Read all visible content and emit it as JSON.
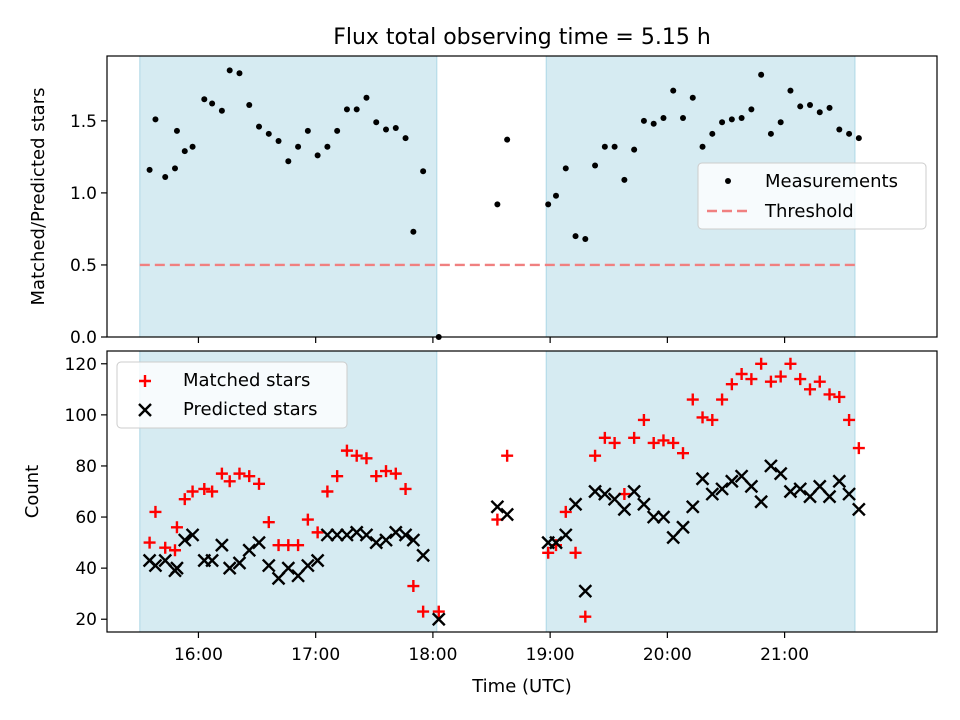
{
  "figure": {
    "title": "Flux total observing time = 5.15 h",
    "xlabel": "Time (UTC)"
  },
  "colors": {
    "shade": "#add8e6",
    "measurement": "#000000",
    "threshold": "#f08080",
    "matched": "#ff0000",
    "predicted": "#000000"
  },
  "chart_data": [
    {
      "type": "scatter",
      "panel": "top",
      "ylabel": "Matched/Predicted stars",
      "xlim_hours": [
        15.22,
        22.3
      ],
      "ylim": [
        0,
        1.95
      ],
      "yticks": [
        0.0,
        0.5,
        1.0,
        1.5
      ],
      "ytick_labels": [
        "0.0",
        "0.5",
        "1.0",
        "1.5"
      ],
      "xticks_hours": [
        16,
        17,
        18,
        19,
        20,
        21
      ],
      "legend": {
        "placement": "center-right",
        "entries": [
          "Measurements",
          "Threshold"
        ]
      },
      "shaded_intervals": [
        [
          "15:30",
          "18:02"
        ],
        [
          "18:58",
          "21:36"
        ]
      ],
      "threshold": {
        "name": "Threshold",
        "value": 0.5
      },
      "series": [
        {
          "name": "Measurements",
          "marker": "dot",
          "points": [
            [
              "15:35",
              1.16
            ],
            [
              "15:38",
              1.51
            ],
            [
              "15:43",
              1.11
            ],
            [
              "15:48",
              1.17
            ],
            [
              "15:49",
              1.43
            ],
            [
              "15:53",
              1.29
            ],
            [
              "15:57",
              1.32
            ],
            [
              "16:03",
              1.65
            ],
            [
              "16:07",
              1.62
            ],
            [
              "16:12",
              1.57
            ],
            [
              "16:16",
              1.85
            ],
            [
              "16:21",
              1.83
            ],
            [
              "16:26",
              1.61
            ],
            [
              "16:31",
              1.46
            ],
            [
              "16:36",
              1.41
            ],
            [
              "16:41",
              1.36
            ],
            [
              "16:46",
              1.22
            ],
            [
              "16:51",
              1.32
            ],
            [
              "16:56",
              1.43
            ],
            [
              "17:01",
              1.26
            ],
            [
              "17:06",
              1.32
            ],
            [
              "17:11",
              1.43
            ],
            [
              "17:16",
              1.58
            ],
            [
              "17:21",
              1.58
            ],
            [
              "17:26",
              1.66
            ],
            [
              "17:31",
              1.49
            ],
            [
              "17:36",
              1.44
            ],
            [
              "17:41",
              1.45
            ],
            [
              "17:46",
              1.38
            ],
            [
              "17:50",
              0.73
            ],
            [
              "17:55",
              1.15
            ],
            [
              "18:03",
              0.0
            ],
            [
              "18:33",
              0.92
            ],
            [
              "18:38",
              1.37
            ],
            [
              "18:59",
              0.92
            ],
            [
              "19:03",
              0.98
            ],
            [
              "19:08",
              1.17
            ],
            [
              "19:13",
              0.7
            ],
            [
              "19:18",
              0.68
            ],
            [
              "19:23",
              1.19
            ],
            [
              "19:28",
              1.32
            ],
            [
              "19:33",
              1.32
            ],
            [
              "19:38",
              1.09
            ],
            [
              "19:43",
              1.3
            ],
            [
              "19:48",
              1.5
            ],
            [
              "19:53",
              1.48
            ],
            [
              "19:58",
              1.52
            ],
            [
              "20:03",
              1.71
            ],
            [
              "20:08",
              1.52
            ],
            [
              "20:13",
              1.66
            ],
            [
              "20:18",
              1.32
            ],
            [
              "20:23",
              1.41
            ],
            [
              "20:28",
              1.49
            ],
            [
              "20:33",
              1.51
            ],
            [
              "20:38",
              1.52
            ],
            [
              "20:43",
              1.58
            ],
            [
              "20:48",
              1.82
            ],
            [
              "20:53",
              1.41
            ],
            [
              "20:58",
              1.49
            ],
            [
              "21:03",
              1.71
            ],
            [
              "21:08",
              1.6
            ],
            [
              "21:13",
              1.61
            ],
            [
              "21:18",
              1.56
            ],
            [
              "21:23",
              1.59
            ],
            [
              "21:28",
              1.44
            ],
            [
              "21:33",
              1.41
            ],
            [
              "21:38",
              1.38
            ]
          ]
        }
      ]
    },
    {
      "type": "scatter",
      "panel": "bottom",
      "ylabel": "Count",
      "xlabel": "Time (UTC)",
      "xlim_hours": [
        15.22,
        22.3
      ],
      "ylim": [
        15,
        125
      ],
      "yticks": [
        20,
        40,
        60,
        80,
        100,
        120
      ],
      "ytick_labels": [
        "20",
        "40",
        "60",
        "80",
        "100",
        "120"
      ],
      "xticks_hours": [
        16,
        17,
        18,
        19,
        20,
        21
      ],
      "xtick_labels": [
        "16:00",
        "17:00",
        "18:00",
        "19:00",
        "20:00",
        "21:00"
      ],
      "legend": {
        "placement": "upper-left",
        "entries": [
          "Matched stars",
          "Predicted stars"
        ]
      },
      "shaded_intervals": [
        [
          "15:30",
          "18:02"
        ],
        [
          "18:58",
          "21:36"
        ]
      ],
      "series": [
        {
          "name": "Matched stars",
          "marker": "plus",
          "points": [
            [
              "15:35",
              50
            ],
            [
              "15:38",
              62
            ],
            [
              "15:43",
              48
            ],
            [
              "15:48",
              47
            ],
            [
              "15:49",
              56
            ],
            [
              "15:53",
              67
            ],
            [
              "15:57",
              70
            ],
            [
              "16:03",
              71
            ],
            [
              "16:07",
              70
            ],
            [
              "16:12",
              77
            ],
            [
              "16:16",
              74
            ],
            [
              "16:21",
              77
            ],
            [
              "16:26",
              76
            ],
            [
              "16:31",
              73
            ],
            [
              "16:36",
              58
            ],
            [
              "16:41",
              49
            ],
            [
              "16:46",
              49
            ],
            [
              "16:51",
              49
            ],
            [
              "16:56",
              59
            ],
            [
              "17:01",
              54
            ],
            [
              "17:06",
              70
            ],
            [
              "17:11",
              76
            ],
            [
              "17:16",
              86
            ],
            [
              "17:21",
              84
            ],
            [
              "17:26",
              83
            ],
            [
              "17:31",
              76
            ],
            [
              "17:36",
              78
            ],
            [
              "17:41",
              77
            ],
            [
              "17:46",
              71
            ],
            [
              "17:50",
              33
            ],
            [
              "17:55",
              23
            ],
            [
              "18:03",
              23
            ],
            [
              "18:33",
              59
            ],
            [
              "18:38",
              84
            ],
            [
              "18:59",
              46
            ],
            [
              "19:03",
              49
            ],
            [
              "19:08",
              62
            ],
            [
              "19:13",
              46
            ],
            [
              "19:18",
              21
            ],
            [
              "19:23",
              84
            ],
            [
              "19:28",
              91
            ],
            [
              "19:33",
              89
            ],
            [
              "19:38",
              69
            ],
            [
              "19:43",
              91
            ],
            [
              "19:48",
              98
            ],
            [
              "19:53",
              89
            ],
            [
              "19:58",
              90
            ],
            [
              "20:03",
              89
            ],
            [
              "20:08",
              85
            ],
            [
              "20:13",
              106
            ],
            [
              "20:18",
              99
            ],
            [
              "20:23",
              98
            ],
            [
              "20:28",
              106
            ],
            [
              "20:33",
              112
            ],
            [
              "20:38",
              116
            ],
            [
              "20:43",
              114
            ],
            [
              "20:48",
              120
            ],
            [
              "20:53",
              113
            ],
            [
              "20:58",
              115
            ],
            [
              "21:03",
              120
            ],
            [
              "21:08",
              114
            ],
            [
              "21:13",
              110
            ],
            [
              "21:18",
              113
            ],
            [
              "21:23",
              108
            ],
            [
              "21:28",
              107
            ],
            [
              "21:33",
              98
            ],
            [
              "21:38",
              87
            ]
          ]
        },
        {
          "name": "Predicted stars",
          "marker": "x",
          "points": [
            [
              "15:35",
              43
            ],
            [
              "15:38",
              41
            ],
            [
              "15:43",
              43
            ],
            [
              "15:48",
              39
            ],
            [
              "15:49",
              40
            ],
            [
              "15:53",
              51
            ],
            [
              "15:57",
              53
            ],
            [
              "16:03",
              43
            ],
            [
              "16:07",
              43
            ],
            [
              "16:12",
              49
            ],
            [
              "16:16",
              40
            ],
            [
              "16:21",
              42
            ],
            [
              "16:26",
              47
            ],
            [
              "16:31",
              50
            ],
            [
              "16:36",
              41
            ],
            [
              "16:41",
              36
            ],
            [
              "16:46",
              40
            ],
            [
              "16:51",
              37
            ],
            [
              "16:56",
              41
            ],
            [
              "17:01",
              43
            ],
            [
              "17:06",
              53
            ],
            [
              "17:11",
              53
            ],
            [
              "17:16",
              53
            ],
            [
              "17:21",
              54
            ],
            [
              "17:26",
              53
            ],
            [
              "17:31",
              50
            ],
            [
              "17:36",
              51
            ],
            [
              "17:41",
              54
            ],
            [
              "17:46",
              53
            ],
            [
              "17:50",
              51
            ],
            [
              "17:55",
              45
            ],
            [
              "18:03",
              20
            ],
            [
              "18:33",
              64
            ],
            [
              "18:38",
              61
            ],
            [
              "18:59",
              50
            ],
            [
              "19:03",
              50
            ],
            [
              "19:08",
              53
            ],
            [
              "19:13",
              65
            ],
            [
              "19:18",
              31
            ],
            [
              "19:23",
              70
            ],
            [
              "19:28",
              69
            ],
            [
              "19:33",
              67
            ],
            [
              "19:38",
              63
            ],
            [
              "19:43",
              70
            ],
            [
              "19:48",
              65
            ],
            [
              "19:53",
              60
            ],
            [
              "19:58",
              60
            ],
            [
              "20:03",
              52
            ],
            [
              "20:08",
              56
            ],
            [
              "20:13",
              64
            ],
            [
              "20:18",
              75
            ],
            [
              "20:23",
              69
            ],
            [
              "20:28",
              71
            ],
            [
              "20:33",
              74
            ],
            [
              "20:38",
              76
            ],
            [
              "20:43",
              72
            ],
            [
              "20:48",
              66
            ],
            [
              "20:53",
              80
            ],
            [
              "20:58",
              77
            ],
            [
              "21:03",
              70
            ],
            [
              "21:08",
              71
            ],
            [
              "21:13",
              68
            ],
            [
              "21:18",
              72
            ],
            [
              "21:23",
              68
            ],
            [
              "21:28",
              74
            ],
            [
              "21:33",
              69
            ],
            [
              "21:38",
              63
            ]
          ]
        }
      ]
    }
  ]
}
